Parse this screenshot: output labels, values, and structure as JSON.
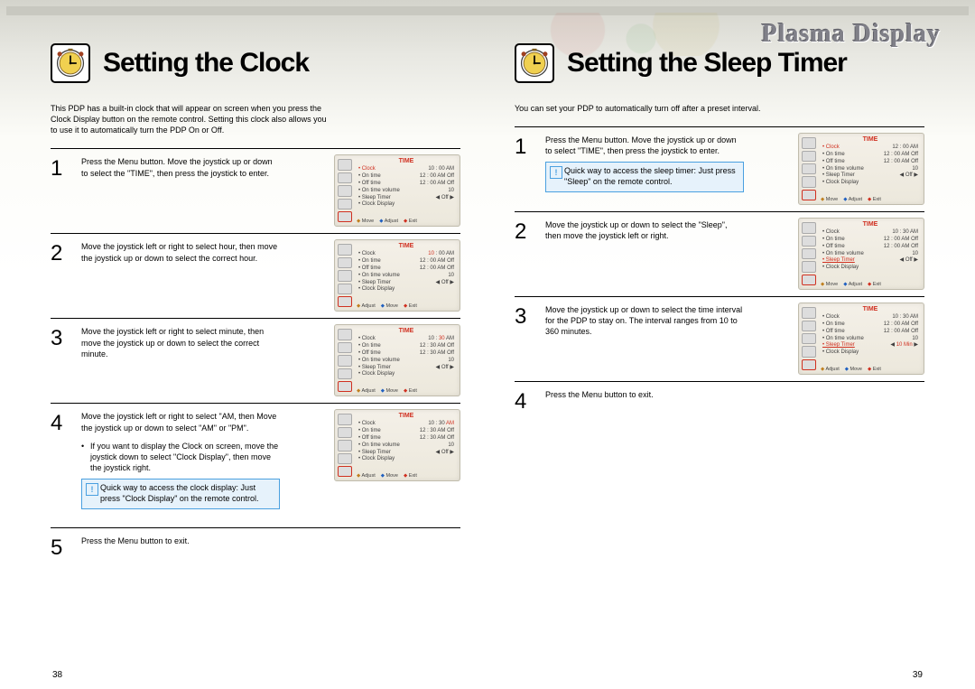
{
  "brand": "Plasma Display",
  "pageLeft": {
    "title": "Setting the Clock",
    "intro": "This PDP has a built-in clock that will appear on screen when you press the Clock Display button on the remote control. Setting this clock also allows you to use it to automatically turn the PDP On or Off.",
    "pageNumber": "38",
    "steps": [
      {
        "n": "1",
        "text": "Press the Menu button. Move the joystick up or down to select the \"TIME\", then press the joystick to enter.",
        "osd": {
          "title": "TIME",
          "iconSel": 4,
          "rows": [
            {
              "k": "Clock",
              "v": "10 : 00  AM",
              "hl": true
            },
            {
              "k": "On time",
              "v": "12 : 00  AM  Off"
            },
            {
              "k": "Off time",
              "v": "12 : 00  AM  Off"
            },
            {
              "k": "On time volume",
              "v": "10"
            },
            {
              "k": "Sleep Timer",
              "v": "◀    Off    ▶"
            },
            {
              "k": "Clock Display",
              "v": ""
            }
          ],
          "foot": [
            "Move",
            "Adjust",
            "Exit"
          ]
        }
      },
      {
        "n": "2",
        "text": "Move the joystick left or right to select  hour, then move the joystick up or down to select the correct hour.",
        "osd": {
          "title": "TIME",
          "iconSel": 4,
          "rows": [
            {
              "k": "Clock",
              "v": "10 : 00  AM",
              "vhl": "10"
            },
            {
              "k": "On time",
              "v": "12 : 00  AM  Off"
            },
            {
              "k": "Off time",
              "v": "12 : 00  AM  Off"
            },
            {
              "k": "On time volume",
              "v": "10"
            },
            {
              "k": "Sleep Timer",
              "v": "◀    Off    ▶"
            },
            {
              "k": "Clock Display",
              "v": ""
            }
          ],
          "foot": [
            "Adjust",
            "Move",
            "Exit"
          ]
        }
      },
      {
        "n": "3",
        "text": "Move the joystick left or right to select  minute, then move the joystick up or down to select the correct minute.",
        "osd": {
          "title": "TIME",
          "iconSel": 4,
          "rows": [
            {
              "k": "Clock",
              "v": "10 : 30  AM",
              "vhl": "30"
            },
            {
              "k": "On time",
              "v": "12 : 30  AM  Off"
            },
            {
              "k": "Off time",
              "v": "12 : 30  AM  Off"
            },
            {
              "k": "On time volume",
              "v": "10"
            },
            {
              "k": "Sleep Timer",
              "v": "◀    Off    ▶"
            },
            {
              "k": "Clock Display",
              "v": ""
            }
          ],
          "foot": [
            "Adjust",
            "Move",
            "Exit"
          ]
        }
      },
      {
        "n": "4",
        "text": "Move the joystick left or right to select  \"AM, then Move the joystick up or down to select \"AM\" or \"PM\".",
        "bullet": "If you want to display the Clock on screen, move the joystick down to select \"Clock Display\", then move the joystick right.",
        "tip": "Quick way to access the clock display: Just press \"Clock Display\" on the remote control.",
        "osd": {
          "title": "TIME",
          "iconSel": 4,
          "rows": [
            {
              "k": "Clock",
              "v": "10 : 30  AM",
              "vhl": "AM"
            },
            {
              "k": "On time",
              "v": "12 : 30  AM  Off"
            },
            {
              "k": "Off time",
              "v": "12 : 30  AM  Off"
            },
            {
              "k": "On time volume",
              "v": "10"
            },
            {
              "k": "Sleep Timer",
              "v": "◀    Off    ▶"
            },
            {
              "k": "Clock Display",
              "v": ""
            }
          ],
          "foot": [
            "Adjust",
            "Move",
            "Exit"
          ]
        }
      },
      {
        "n": "5",
        "text": "Press the Menu button to exit."
      }
    ]
  },
  "pageRight": {
    "title": "Setting the Sleep Timer",
    "intro": "You can set your PDP to automatically turn off after a preset interval.",
    "pageNumber": "39",
    "steps": [
      {
        "n": "1",
        "text": "Press the Menu button. Move the joystick up or down to select \"TIME\", then press the joystick to enter.",
        "tip": "Quick way to access the sleep timer: Just press \"Sleep\" on the remote control.",
        "osd": {
          "title": "TIME",
          "iconSel": 4,
          "rows": [
            {
              "k": "Clock",
              "v": "12 : 00  AM",
              "hl": true
            },
            {
              "k": "On time",
              "v": "12 : 00  AM  Off"
            },
            {
              "k": "Off time",
              "v": "12 : 00  AM  Off"
            },
            {
              "k": "On time volume",
              "v": "10"
            },
            {
              "k": "Sleep Timer",
              "v": "◀    Off    ▶"
            },
            {
              "k": "Clock Display",
              "v": ""
            }
          ],
          "foot": [
            "Move",
            "Adjust",
            "Exit"
          ]
        }
      },
      {
        "n": "2",
        "text": "Move the joystick up or down to select the \"Sleep\", then move the joystick left or right.",
        "osd": {
          "title": "TIME",
          "iconSel": 4,
          "rows": [
            {
              "k": "Clock",
              "v": "10 : 30  AM"
            },
            {
              "k": "On time",
              "v": "12 : 00  AM  Off"
            },
            {
              "k": "Off time",
              "v": "12 : 00  AM  Off"
            },
            {
              "k": "On time volume",
              "v": "10"
            },
            {
              "k": "Sleep Timer",
              "v": "◀    Off    ▶",
              "hl2": true
            },
            {
              "k": "Clock Display",
              "v": ""
            }
          ],
          "foot": [
            "Move",
            "Adjust",
            "Exit"
          ]
        }
      },
      {
        "n": "3",
        "text": "Move the joystick up or down to select the time interval for the PDP to stay on.  The interval ranges from 10 to 360 minutes.",
        "osd": {
          "title": "TIME",
          "iconSel": 4,
          "rows": [
            {
              "k": "Clock",
              "v": "10 : 30  AM"
            },
            {
              "k": "On time",
              "v": "12 : 00  AM  Off"
            },
            {
              "k": "Off time",
              "v": "12 : 00  AM  Off"
            },
            {
              "k": "On time volume",
              "v": "10"
            },
            {
              "k": "Sleep Timer",
              "v": "◀  10 Min  ▶",
              "hl2": true,
              "vhl": "10 Min"
            },
            {
              "k": "Clock Display",
              "v": ""
            }
          ],
          "foot": [
            "Adjust",
            "Move",
            "Exit"
          ]
        }
      },
      {
        "n": "4",
        "text": "Press the Menu button to exit."
      }
    ]
  },
  "style": {
    "title_fontsize": 30,
    "body_fontsize": 9,
    "num_fontsize": 24,
    "tip_bg": "#e6f2fb",
    "tip_border": "#4aa0e0",
    "osd_title_color": "#d03020",
    "osd_bg": "#f0ece0"
  }
}
